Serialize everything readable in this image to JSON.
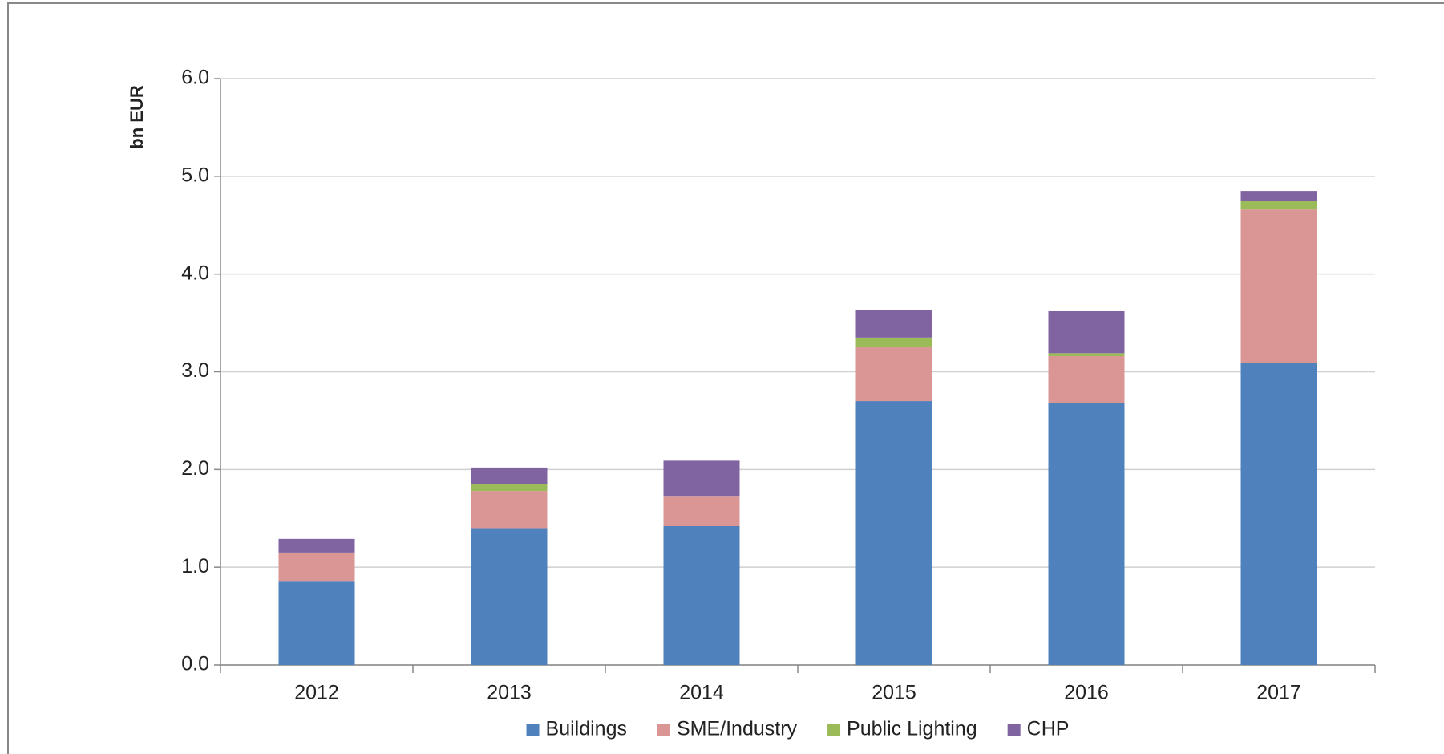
{
  "chart_data": {
    "type": "stacked_bar",
    "y_label": "bn EUR",
    "categories": [
      "2012",
      "2013",
      "2014",
      "2015",
      "2016",
      "2017"
    ],
    "series": [
      {
        "name": "Buildings",
        "color": "#4f81bd",
        "values": [
          0.86,
          1.4,
          1.42,
          2.7,
          2.68,
          3.09
        ]
      },
      {
        "name": "SME/Industry",
        "color": "#d99694",
        "values": [
          0.29,
          0.38,
          0.31,
          0.55,
          0.48,
          1.57
        ]
      },
      {
        "name": "Public Lighting",
        "color": "#9bbb59",
        "values": [
          0,
          0.07,
          0,
          0.1,
          0.03,
          0.09
        ]
      },
      {
        "name": "CHP",
        "color": "#8064a2",
        "values": [
          0.14,
          0.17,
          0.36,
          0.28,
          0.43,
          0.1
        ]
      }
    ],
    "ylim": [
      0,
      6
    ],
    "yticks": [
      {
        "value": 0,
        "label": "0.0"
      },
      {
        "value": 1,
        "label": "1.0"
      },
      {
        "value": 2,
        "label": "2.0"
      },
      {
        "value": 3,
        "label": "3.0"
      },
      {
        "value": 4,
        "label": "4.0"
      },
      {
        "value": 5,
        "label": "5.0"
      },
      {
        "value": 6,
        "label": "6.0"
      }
    ],
    "grid": true,
    "legend": "bottom"
  }
}
